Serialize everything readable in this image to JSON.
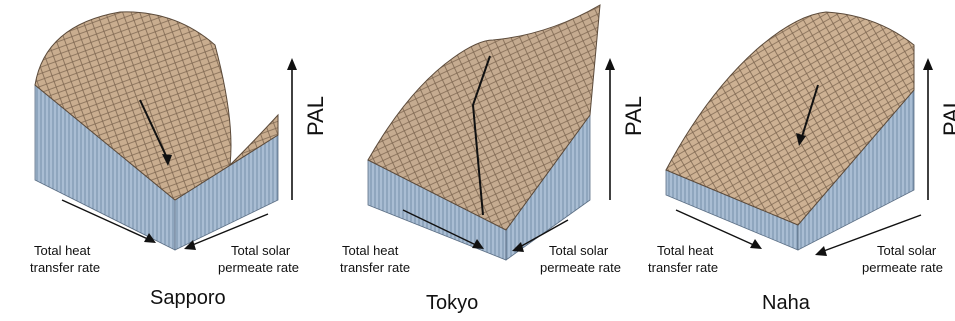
{
  "panels": [
    {
      "city": "Sapporo",
      "axis_up": "PAL",
      "axis_left": [
        "Total heat",
        "transfer rate"
      ],
      "axis_right": [
        "Total solar",
        "permeate rate"
      ]
    },
    {
      "city": "Tokyo",
      "axis_up": "PAL",
      "axis_left": [
        "Total heat",
        "transfer rate"
      ],
      "axis_right": [
        "Total solar",
        "permeate rate"
      ]
    },
    {
      "city": "Naha",
      "axis_up": "PAL",
      "axis_left": [
        "Total heat",
        "transfer rate"
      ],
      "axis_right": [
        "Total solar",
        "permeate rate"
      ]
    }
  ],
  "colors": {
    "surface": "#c9ad8f",
    "mesh": "#7d6650",
    "side": "#a9bdd3",
    "side_dark": "#6f8aa6",
    "arrow": "#111111"
  }
}
